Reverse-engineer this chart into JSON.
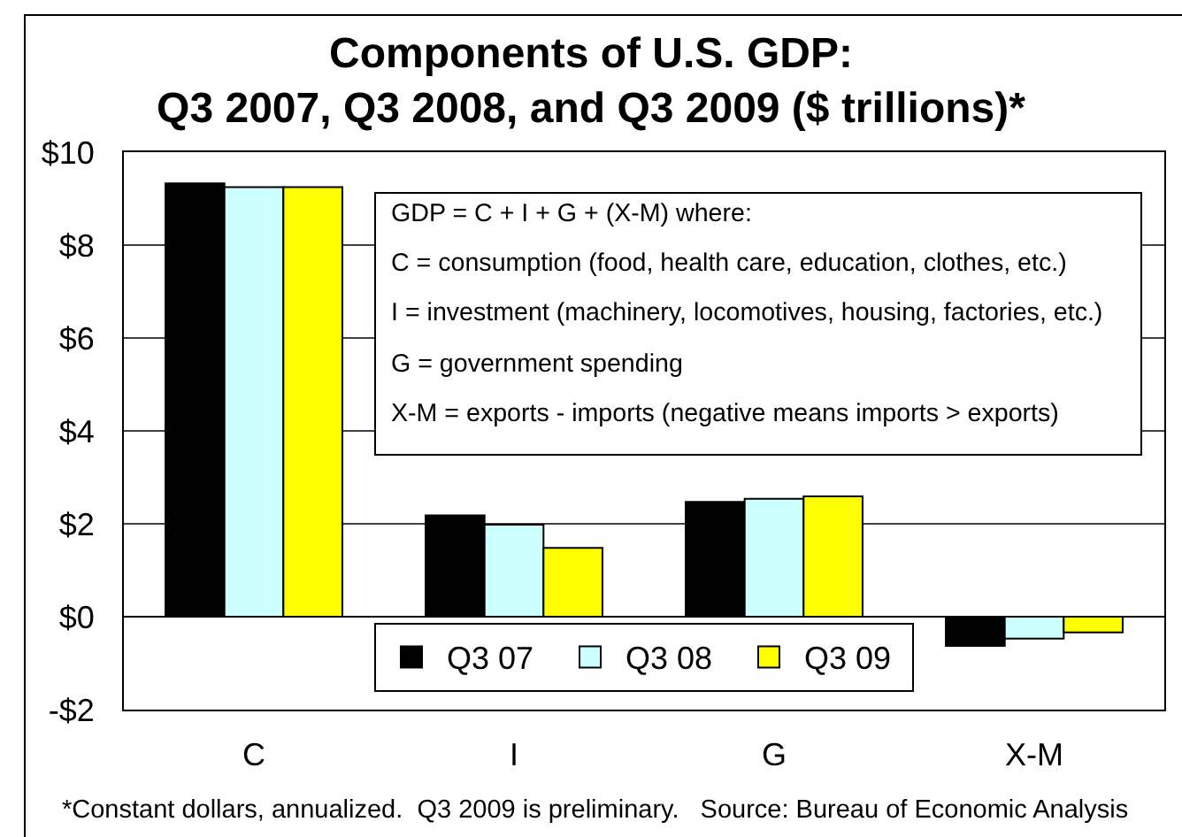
{
  "chart_data": {
    "type": "bar",
    "title": "Components of U.S. GDP:\nQ3 2007, Q3 2008, and Q3 2009 ($ trillions)*",
    "categories": [
      "C",
      "I",
      "G",
      "X-M"
    ],
    "series": [
      {
        "name": "Q3 07",
        "color": "#000000",
        "values": [
          9.33,
          2.18,
          2.47,
          -0.63
        ]
      },
      {
        "name": "Q3 08",
        "color": "#ccffff",
        "values": [
          9.25,
          1.98,
          2.54,
          -0.47
        ]
      },
      {
        "name": "Q3 09",
        "color": "#ffff00",
        "values": [
          9.25,
          1.48,
          2.59,
          -0.34
        ]
      }
    ],
    "ylim": [
      -2,
      10
    ],
    "yticks": [
      {
        "value": -2,
        "label": "-$2"
      },
      {
        "value": 0,
        "label": "$0"
      },
      {
        "value": 2,
        "label": "$2"
      },
      {
        "value": 4,
        "label": "$4"
      },
      {
        "value": 6,
        "label": "$6"
      },
      {
        "value": 8,
        "label": "$8"
      },
      {
        "value": 10,
        "label": "$10"
      }
    ],
    "grid": "y",
    "legend": "bottom",
    "annotations": [
      "GDP = C + I + G + (X-M) where:",
      "C = consumption (food, health care, education, clothes, etc.)",
      "I = investment (machinery, locomotives, housing, factories, etc.)",
      "G = government spending",
      "X-M = exports - imports (negative means imports > exports)",
      "*Constant dollars, annualized.  Q3 2009 is preliminary.   Source: Bureau of Economic Analysis"
    ]
  }
}
